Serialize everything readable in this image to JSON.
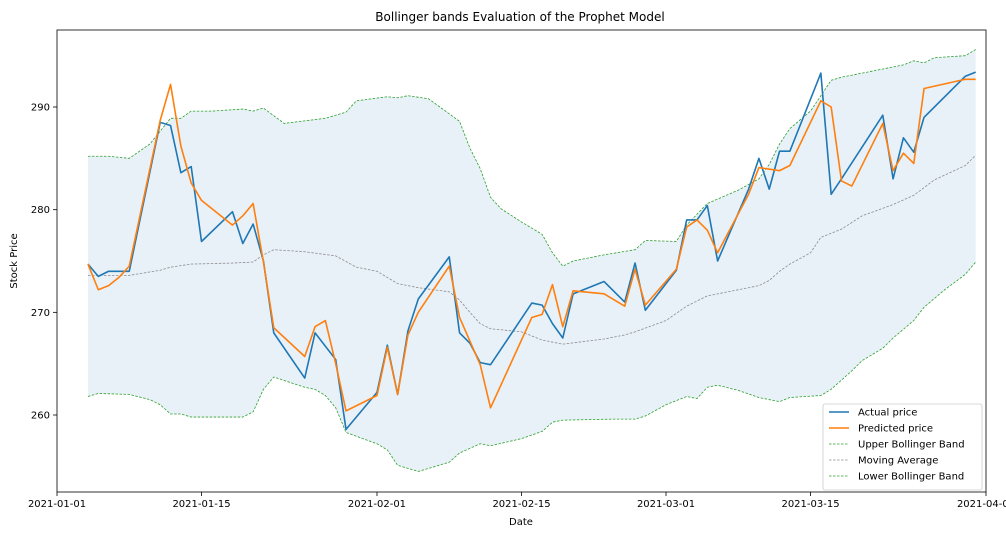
{
  "chart_data": {
    "type": "line",
    "title": "Bollinger bands Evaluation of the Prophet  Model",
    "xlabel": "Date",
    "ylabel": "Stock Price",
    "xlim": [
      "2021-01-01",
      "2021-04-01"
    ],
    "ylim": [
      252.5,
      297.5
    ],
    "x_ticks": [
      "2021-01-01",
      "2021-01-15",
      "2021-02-01",
      "2021-02-15",
      "2021-03-01",
      "2021-03-15",
      "2021-04-01"
    ],
    "y_ticks": [
      260,
      270,
      280,
      290
    ],
    "grid": false,
    "legend_position": "bottom-right",
    "band_fill_color": "#e8f1f8",
    "series": [
      {
        "name": "Actual price",
        "color": "#1f77b4",
        "style": "solid",
        "points": [
          [
            "2021-01-04",
            274.7
          ],
          [
            "2021-01-05",
            273.5
          ],
          [
            "2021-01-06",
            274.0
          ],
          [
            "2021-01-07",
            274.0
          ],
          [
            "2021-01-08",
            274.0
          ],
          [
            "2021-01-11",
            288.5
          ],
          [
            "2021-01-12",
            288.2
          ],
          [
            "2021-01-13",
            283.6
          ],
          [
            "2021-01-14",
            284.2
          ],
          [
            "2021-01-15",
            276.9
          ],
          [
            "2021-01-18",
            279.8
          ],
          [
            "2021-01-19",
            276.7
          ],
          [
            "2021-01-20",
            278.6
          ],
          [
            "2021-01-21",
            275.0
          ],
          [
            "2021-01-22",
            268.0
          ],
          [
            "2021-01-25",
            263.6
          ],
          [
            "2021-01-26",
            268.0
          ],
          [
            "2021-01-28",
            265.4
          ],
          [
            "2021-01-29",
            258.6
          ],
          [
            "2021-02-01",
            262.2
          ],
          [
            "2021-02-02",
            266.8
          ],
          [
            "2021-02-03",
            262.0
          ],
          [
            "2021-02-04",
            268.2
          ],
          [
            "2021-02-05",
            271.3
          ],
          [
            "2021-02-08",
            275.4
          ],
          [
            "2021-02-09",
            268.0
          ],
          [
            "2021-02-10",
            267.0
          ],
          [
            "2021-02-11",
            265.1
          ],
          [
            "2021-02-12",
            264.9
          ],
          [
            "2021-02-16",
            270.9
          ],
          [
            "2021-02-17",
            270.7
          ],
          [
            "2021-02-18",
            268.9
          ],
          [
            "2021-02-19",
            267.5
          ],
          [
            "2021-02-20",
            271.8
          ],
          [
            "2021-02-23",
            273.0
          ],
          [
            "2021-02-25",
            271.0
          ],
          [
            "2021-02-26",
            274.8
          ],
          [
            "2021-02-27",
            270.2
          ],
          [
            "2021-03-02",
            274.1
          ],
          [
            "2021-03-03",
            279.0
          ],
          [
            "2021-03-04",
            279.0
          ],
          [
            "2021-03-05",
            280.4
          ],
          [
            "2021-03-06",
            275.0
          ],
          [
            "2021-03-09",
            282.0
          ],
          [
            "2021-03-10",
            285.0
          ],
          [
            "2021-03-11",
            282.0
          ],
          [
            "2021-03-12",
            285.7
          ],
          [
            "2021-03-13",
            285.7
          ],
          [
            "2021-03-16",
            293.3
          ],
          [
            "2021-03-17",
            281.5
          ],
          [
            "2021-03-18",
            283.0
          ],
          [
            "2021-03-22",
            289.2
          ],
          [
            "2021-03-23",
            283.0
          ],
          [
            "2021-03-24",
            287.0
          ],
          [
            "2021-03-25",
            285.6
          ],
          [
            "2021-03-26",
            289.0
          ],
          [
            "2021-03-30",
            293.0
          ],
          [
            "2021-03-31",
            293.4
          ]
        ]
      },
      {
        "name": "Predicted price",
        "color": "#ff7f0e",
        "style": "solid",
        "points": [
          [
            "2021-01-04",
            274.7
          ],
          [
            "2021-01-05",
            272.2
          ],
          [
            "2021-01-06",
            272.6
          ],
          [
            "2021-01-07",
            273.4
          ],
          [
            "2021-01-08",
            274.5
          ],
          [
            "2021-01-11",
            288.7
          ],
          [
            "2021-01-12",
            292.2
          ],
          [
            "2021-01-13",
            286.2
          ],
          [
            "2021-01-14",
            282.6
          ],
          [
            "2021-01-15",
            280.9
          ],
          [
            "2021-01-18",
            278.5
          ],
          [
            "2021-01-19",
            279.4
          ],
          [
            "2021-01-20",
            280.6
          ],
          [
            "2021-01-21",
            274.9
          ],
          [
            "2021-01-22",
            268.5
          ],
          [
            "2021-01-25",
            265.7
          ],
          [
            "2021-01-26",
            268.6
          ],
          [
            "2021-01-27",
            269.2
          ],
          [
            "2021-01-28",
            265.0
          ],
          [
            "2021-01-29",
            260.4
          ],
          [
            "2021-02-01",
            261.9
          ],
          [
            "2021-02-02",
            266.6
          ],
          [
            "2021-02-03",
            262.0
          ],
          [
            "2021-02-04",
            267.8
          ],
          [
            "2021-02-05",
            270.0
          ],
          [
            "2021-02-08",
            274.5
          ],
          [
            "2021-02-09",
            269.5
          ],
          [
            "2021-02-10",
            267.2
          ],
          [
            "2021-02-11",
            264.9
          ],
          [
            "2021-02-12",
            260.7
          ],
          [
            "2021-02-16",
            269.5
          ],
          [
            "2021-02-17",
            269.8
          ],
          [
            "2021-02-18",
            272.7
          ],
          [
            "2021-02-19",
            268.6
          ],
          [
            "2021-02-20",
            272.1
          ],
          [
            "2021-02-23",
            271.8
          ],
          [
            "2021-02-25",
            270.6
          ],
          [
            "2021-02-26",
            274.2
          ],
          [
            "2021-02-27",
            270.7
          ],
          [
            "2021-03-02",
            274.2
          ],
          [
            "2021-03-03",
            278.3
          ],
          [
            "2021-03-04",
            279.0
          ],
          [
            "2021-03-05",
            278.0
          ],
          [
            "2021-03-06",
            275.8
          ],
          [
            "2021-03-09",
            281.5
          ],
          [
            "2021-03-10",
            284.1
          ],
          [
            "2021-03-12",
            283.8
          ],
          [
            "2021-03-13",
            284.3
          ],
          [
            "2021-03-16",
            290.6
          ],
          [
            "2021-03-17",
            290.0
          ],
          [
            "2021-03-18",
            282.8
          ],
          [
            "2021-03-19",
            282.3
          ],
          [
            "2021-03-22",
            288.4
          ],
          [
            "2021-03-23",
            283.8
          ],
          [
            "2021-03-24",
            285.5
          ],
          [
            "2021-03-25",
            284.5
          ],
          [
            "2021-03-26",
            291.8
          ],
          [
            "2021-03-30",
            292.7
          ],
          [
            "2021-03-31",
            292.7
          ]
        ]
      },
      {
        "name": "Upper Bollinger Band",
        "color": "#2ca02c",
        "style": "dashed",
        "points": [
          [
            "2021-01-04",
            285.2
          ],
          [
            "2021-01-06",
            285.2
          ],
          [
            "2021-01-08",
            285.0
          ],
          [
            "2021-01-10",
            286.4
          ],
          [
            "2021-01-12",
            288.9
          ],
          [
            "2021-01-13",
            288.9
          ],
          [
            "2021-01-14",
            289.6
          ],
          [
            "2021-01-16",
            289.6
          ],
          [
            "2021-01-19",
            289.8
          ],
          [
            "2021-01-20",
            289.6
          ],
          [
            "2021-01-21",
            289.9
          ],
          [
            "2021-01-23",
            288.4
          ],
          [
            "2021-01-27",
            288.9
          ],
          [
            "2021-01-29",
            289.5
          ],
          [
            "2021-01-30",
            290.6
          ],
          [
            "2021-02-02",
            291.0
          ],
          [
            "2021-02-03",
            290.9
          ],
          [
            "2021-02-04",
            291.1
          ],
          [
            "2021-02-06",
            290.8
          ],
          [
            "2021-02-09",
            288.6
          ],
          [
            "2021-02-10",
            286.0
          ],
          [
            "2021-02-11",
            284.0
          ],
          [
            "2021-02-12",
            281.2
          ],
          [
            "2021-02-13",
            280.1
          ],
          [
            "2021-02-15",
            278.8
          ],
          [
            "2021-02-17",
            277.6
          ],
          [
            "2021-02-18",
            275.8
          ],
          [
            "2021-02-19",
            274.5
          ],
          [
            "2021-02-20",
            275.0
          ],
          [
            "2021-02-23",
            275.6
          ],
          [
            "2021-02-26",
            276.1
          ],
          [
            "2021-02-27",
            277.0
          ],
          [
            "2021-03-02",
            276.9
          ],
          [
            "2021-03-03",
            278.5
          ],
          [
            "2021-03-05",
            280.6
          ],
          [
            "2021-03-08",
            281.9
          ],
          [
            "2021-03-10",
            283.0
          ],
          [
            "2021-03-11",
            284.4
          ],
          [
            "2021-03-12",
            286.4
          ],
          [
            "2021-03-13",
            287.9
          ],
          [
            "2021-03-15",
            289.6
          ],
          [
            "2021-03-17",
            292.6
          ],
          [
            "2021-03-18",
            292.9
          ],
          [
            "2021-03-21",
            293.5
          ],
          [
            "2021-03-24",
            294.1
          ],
          [
            "2021-03-25",
            294.5
          ],
          [
            "2021-03-26",
            294.3
          ],
          [
            "2021-03-27",
            294.8
          ],
          [
            "2021-03-30",
            295.0
          ],
          [
            "2021-03-31",
            295.6
          ]
        ]
      },
      {
        "name": "Moving Average",
        "color": "#8c8c8c",
        "style": "dashed",
        "points": [
          [
            "2021-01-04",
            273.6
          ],
          [
            "2021-01-08",
            273.6
          ],
          [
            "2021-01-11",
            274.1
          ],
          [
            "2021-01-12",
            274.4
          ],
          [
            "2021-01-14",
            274.7
          ],
          [
            "2021-01-18",
            274.8
          ],
          [
            "2021-01-20",
            274.9
          ],
          [
            "2021-01-21",
            275.6
          ],
          [
            "2021-01-22",
            276.1
          ],
          [
            "2021-01-25",
            275.9
          ],
          [
            "2021-01-28",
            275.5
          ],
          [
            "2021-01-30",
            274.4
          ],
          [
            "2021-02-01",
            274.0
          ],
          [
            "2021-02-03",
            272.8
          ],
          [
            "2021-02-05",
            272.4
          ],
          [
            "2021-02-08",
            272.0
          ],
          [
            "2021-02-09",
            271.2
          ],
          [
            "2021-02-10",
            270.0
          ],
          [
            "2021-02-11",
            268.9
          ],
          [
            "2021-02-12",
            268.4
          ],
          [
            "2021-02-15",
            268.1
          ],
          [
            "2021-02-17",
            267.3
          ],
          [
            "2021-02-19",
            266.9
          ],
          [
            "2021-02-23",
            267.4
          ],
          [
            "2021-02-25",
            267.8
          ],
          [
            "2021-02-26",
            268.1
          ],
          [
            "2021-03-01",
            269.2
          ],
          [
            "2021-03-03",
            270.6
          ],
          [
            "2021-03-05",
            271.6
          ],
          [
            "2021-03-07",
            272.0
          ],
          [
            "2021-03-10",
            272.6
          ],
          [
            "2021-03-11",
            273.1
          ],
          [
            "2021-03-12",
            274.0
          ],
          [
            "2021-03-13",
            274.7
          ],
          [
            "2021-03-15",
            275.8
          ],
          [
            "2021-03-16",
            277.3
          ],
          [
            "2021-03-18",
            278.1
          ],
          [
            "2021-03-20",
            279.4
          ],
          [
            "2021-03-23",
            280.5
          ],
          [
            "2021-03-25",
            281.4
          ],
          [
            "2021-03-27",
            282.9
          ],
          [
            "2021-03-30",
            284.3
          ],
          [
            "2021-03-31",
            285.3
          ]
        ]
      },
      {
        "name": "Lower Bollinger Band",
        "color": "#2ca02c",
        "style": "dashed",
        "points": [
          [
            "2021-01-04",
            261.8
          ],
          [
            "2021-01-05",
            262.1
          ],
          [
            "2021-01-08",
            262.0
          ],
          [
            "2021-01-10",
            261.5
          ],
          [
            "2021-01-11",
            261.0
          ],
          [
            "2021-01-12",
            260.1
          ],
          [
            "2021-01-13",
            260.1
          ],
          [
            "2021-01-14",
            259.8
          ],
          [
            "2021-01-19",
            259.8
          ],
          [
            "2021-01-20",
            260.3
          ],
          [
            "2021-01-21",
            262.5
          ],
          [
            "2021-01-22",
            263.7
          ],
          [
            "2021-01-25",
            262.7
          ],
          [
            "2021-01-26",
            262.5
          ],
          [
            "2021-01-27",
            261.9
          ],
          [
            "2021-01-28",
            260.7
          ],
          [
            "2021-01-29",
            258.3
          ],
          [
            "2021-02-01",
            257.2
          ],
          [
            "2021-02-02",
            256.6
          ],
          [
            "2021-02-03",
            255.1
          ],
          [
            "2021-02-05",
            254.5
          ],
          [
            "2021-02-07",
            255.1
          ],
          [
            "2021-02-08",
            255.4
          ],
          [
            "2021-02-09",
            256.3
          ],
          [
            "2021-02-11",
            257.2
          ],
          [
            "2021-02-12",
            257.0
          ],
          [
            "2021-02-15",
            257.7
          ],
          [
            "2021-02-17",
            258.4
          ],
          [
            "2021-02-18",
            259.3
          ],
          [
            "2021-02-19",
            259.5
          ],
          [
            "2021-02-24",
            259.6
          ],
          [
            "2021-02-26",
            259.6
          ],
          [
            "2021-02-27",
            259.9
          ],
          [
            "2021-03-01",
            261.0
          ],
          [
            "2021-03-03",
            261.8
          ],
          [
            "2021-03-04",
            261.6
          ],
          [
            "2021-03-05",
            262.7
          ],
          [
            "2021-03-06",
            262.9
          ],
          [
            "2021-03-08",
            262.4
          ],
          [
            "2021-03-10",
            261.7
          ],
          [
            "2021-03-12",
            261.3
          ],
          [
            "2021-03-13",
            261.7
          ],
          [
            "2021-03-16",
            261.9
          ],
          [
            "2021-03-17",
            262.5
          ],
          [
            "2021-03-19",
            264.3
          ],
          [
            "2021-03-20",
            265.3
          ],
          [
            "2021-03-22",
            266.5
          ],
          [
            "2021-03-23",
            267.5
          ],
          [
            "2021-03-25",
            269.2
          ],
          [
            "2021-03-26",
            270.5
          ],
          [
            "2021-03-28",
            272.2
          ],
          [
            "2021-03-30",
            273.7
          ],
          [
            "2021-03-31",
            274.9
          ]
        ]
      }
    ]
  }
}
